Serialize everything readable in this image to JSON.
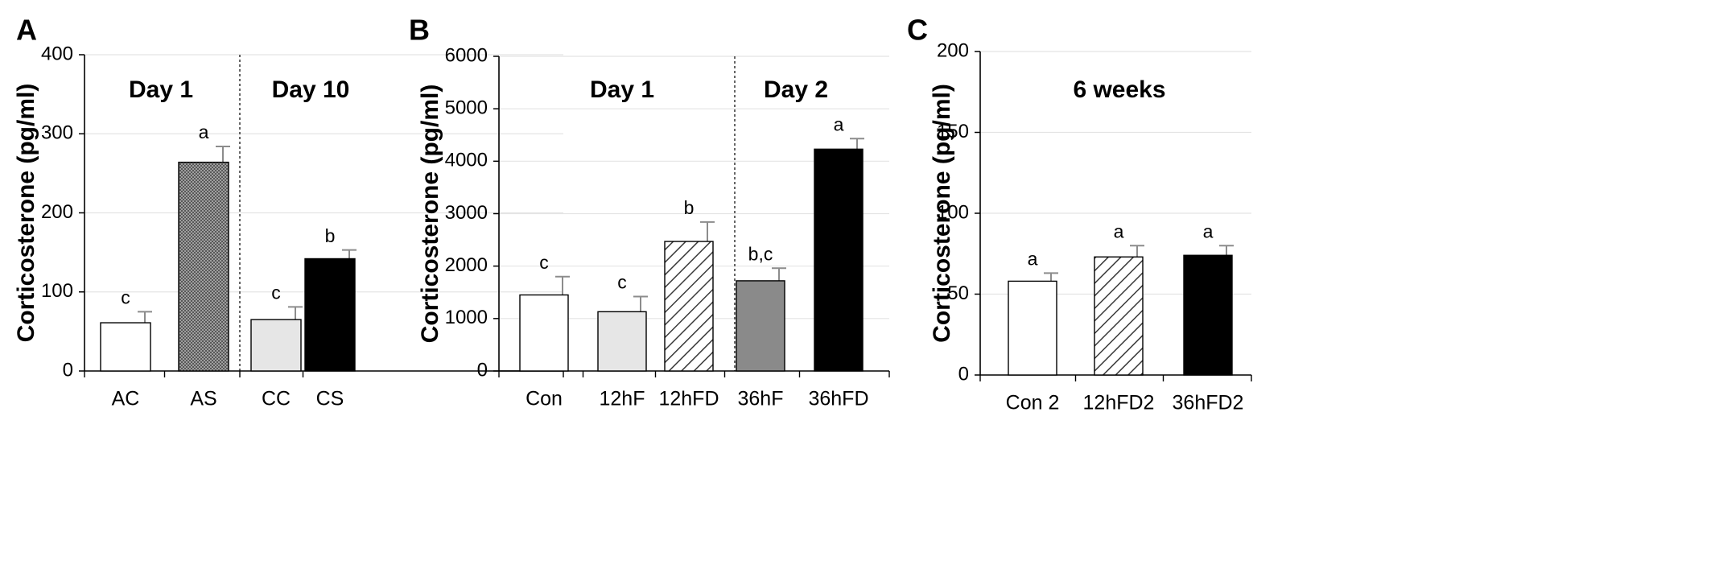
{
  "chart_data": [
    {
      "panel": "A",
      "type": "bar",
      "ylabel": "Corticosterone (pg/ml)",
      "ylim": [
        0,
        400
      ],
      "yticks": [
        0,
        100,
        200,
        300,
        400
      ],
      "categories": [
        "AC",
        "AS",
        "CC",
        "CS"
      ],
      "values": [
        61,
        264,
        65,
        142
      ],
      "errors": [
        14,
        20,
        16,
        11
      ],
      "significance": [
        "c",
        "a",
        "c",
        "b"
      ],
      "fills": [
        "white",
        "crosshatch",
        "light-gray",
        "black"
      ],
      "sections": [
        {
          "label": "Day 1",
          "categories": [
            "AC",
            "AS"
          ]
        },
        {
          "label": "Day 10",
          "categories": [
            "CC",
            "CS"
          ]
        }
      ],
      "grid": true
    },
    {
      "panel": "B",
      "type": "bar",
      "ylabel": "Corticosterone (pg/ml)",
      "ylim": [
        0,
        6000
      ],
      "yticks": [
        0,
        1000,
        2000,
        3000,
        4000,
        5000,
        6000
      ],
      "categories": [
        "Con",
        "12hF",
        "12hFD",
        "36hF",
        "36hFD"
      ],
      "values": [
        1450,
        1130,
        2470,
        1720,
        4230
      ],
      "errors": [
        350,
        290,
        370,
        240,
        200
      ],
      "significance": [
        "c",
        "c",
        "b",
        "b,c",
        "a"
      ],
      "fills": [
        "white",
        "light-gray",
        "diagonal-hatch",
        "gray",
        "black"
      ],
      "sections": [
        {
          "label": "Day 1",
          "categories": [
            "Con",
            "12hF",
            "12hFD"
          ]
        },
        {
          "label": "Day 2",
          "categories": [
            "36hF",
            "36hFD"
          ]
        }
      ],
      "grid": true
    },
    {
      "panel": "C",
      "type": "bar",
      "ylabel": "Corticosterone (pg/ml)",
      "ylim": [
        0,
        200
      ],
      "yticks": [
        0,
        50,
        100,
        150,
        200
      ],
      "categories": [
        "Con 2",
        "12hFD2",
        "36hFD2"
      ],
      "values": [
        58,
        73,
        74
      ],
      "errors": [
        5,
        7,
        6
      ],
      "significance": [
        "a",
        "a",
        "a"
      ],
      "fills": [
        "white",
        "diagonal-hatch",
        "black"
      ],
      "sections": [
        {
          "label": "6 weeks",
          "categories": [
            "Con 2",
            "12hFD2",
            "36hFD2"
          ]
        }
      ],
      "grid": true
    }
  ],
  "colors": {
    "white": "#ffffff",
    "light-gray": "#e6e6e6",
    "gray": "#8a8a8a",
    "black": "#000000",
    "grid": "#e4e4e4",
    "outline": "#000000",
    "error": "#8c8c8c"
  }
}
